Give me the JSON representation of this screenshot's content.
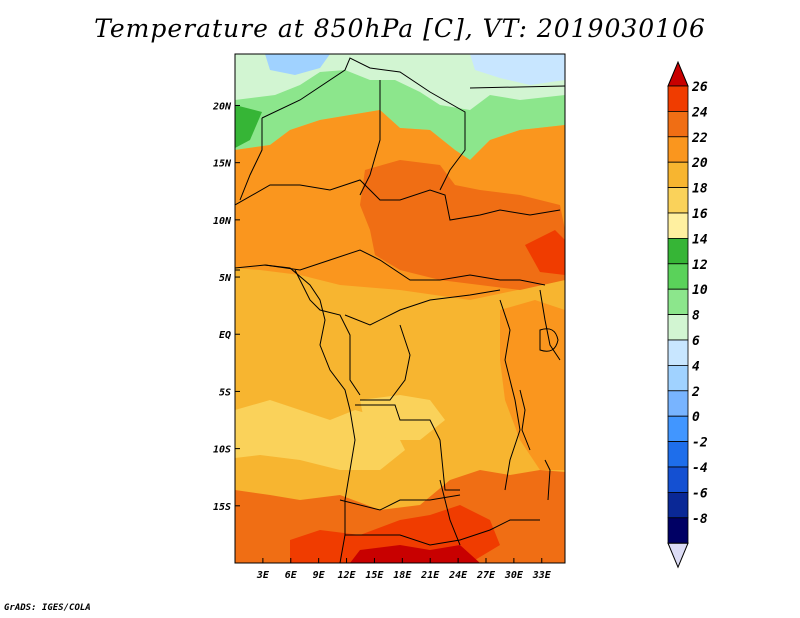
{
  "title": "Temperature at 850hPa [C], VT: 2019030106",
  "credit": "GrADS: IGES/COLA",
  "map": {
    "lon_range": [
      0,
      35.5
    ],
    "lat_range": [
      -20,
      24.5
    ],
    "x_ticks": [
      {
        "value": 3,
        "label": "3E"
      },
      {
        "value": 6,
        "label": "6E"
      },
      {
        "value": 9,
        "label": "9E"
      },
      {
        "value": 12,
        "label": "12E"
      },
      {
        "value": 15,
        "label": "15E"
      },
      {
        "value": 18,
        "label": "18E"
      },
      {
        "value": 21,
        "label": "21E"
      },
      {
        "value": 24,
        "label": "24E"
      },
      {
        "value": 27,
        "label": "27E"
      },
      {
        "value": 30,
        "label": "30E"
      },
      {
        "value": 33,
        "label": "33E"
      }
    ],
    "y_ticks": [
      {
        "value": 20,
        "label": "20N"
      },
      {
        "value": 15,
        "label": "15N"
      },
      {
        "value": 10,
        "label": "10N"
      },
      {
        "value": 5,
        "label": "5N"
      },
      {
        "value": 0,
        "label": "EQ"
      },
      {
        "value": -5,
        "label": "5S"
      },
      {
        "value": -10,
        "label": "10S"
      },
      {
        "value": -15,
        "label": "15S"
      }
    ]
  },
  "colorbar": {
    "levels": [
      "26",
      "24",
      "22",
      "20",
      "18",
      "16",
      "14",
      "12",
      "10",
      "8",
      "6",
      "4",
      "2",
      "0",
      "-2",
      "-4",
      "-6",
      "-8"
    ],
    "colors": [
      "#c80000",
      "#f03c00",
      "#f06e14",
      "#fa961e",
      "#f7b530",
      "#fad25a",
      "#fff0a0",
      "#36b536",
      "#5ad25a",
      "#8ce68c",
      "#d2f5d2",
      "#c8e6ff",
      "#a0d2ff",
      "#78b4ff",
      "#4196ff",
      "#1e6eeb",
      "#1450d2",
      "#0a2896",
      "#000064",
      "#dcdcf5"
    ]
  },
  "palette": {
    "sahara_cool": "#8ce68c",
    "sahara_cold": "#d2f5d2",
    "mid": "#fa961e",
    "warm": "#f06e14",
    "hot": "#f03c00",
    "south_pale": "#fad25a",
    "background": "#f7b530"
  }
}
